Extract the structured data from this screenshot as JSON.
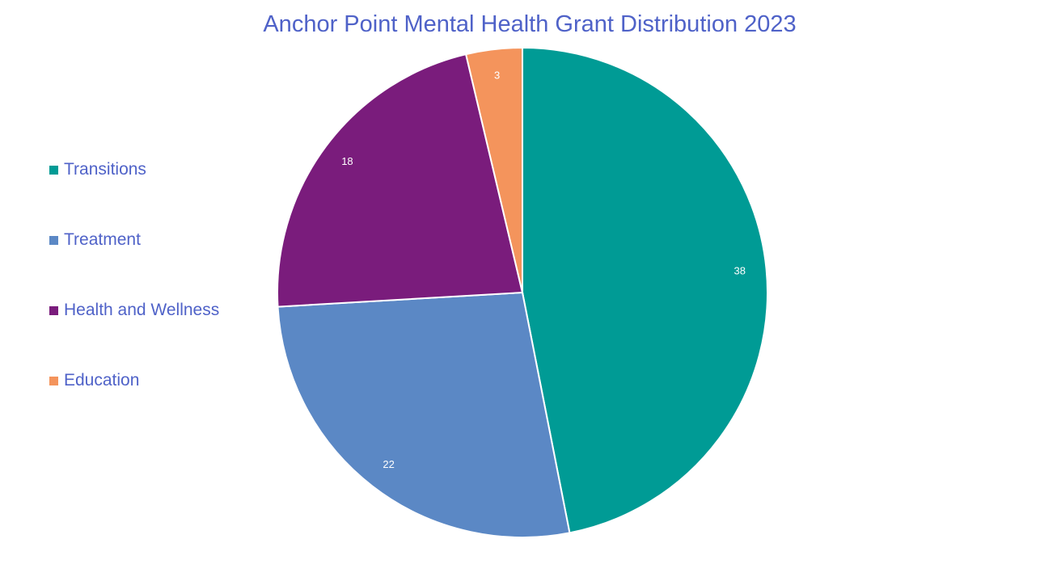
{
  "chart_data": {
    "type": "pie",
    "title": "Anchor Point Mental Health Grant Distribution 2023",
    "categories": [
      "Transitions",
      "Treatment",
      "Health and Wellness",
      "Education"
    ],
    "values": [
      38,
      22,
      18,
      3
    ],
    "colors": [
      "#009B95",
      "#5B88C5",
      "#7A1C7C",
      "#F4945C"
    ],
    "data_labels": [
      "38",
      "22",
      "18",
      "3"
    ],
    "legend_position": "left",
    "start_angle": "12 o'clock",
    "direction": "clockwise"
  }
}
